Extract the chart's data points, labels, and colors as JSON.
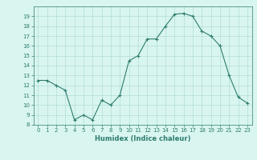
{
  "x": [
    0,
    1,
    2,
    3,
    4,
    5,
    6,
    7,
    8,
    9,
    10,
    11,
    12,
    13,
    14,
    15,
    16,
    17,
    18,
    19,
    20,
    21,
    22,
    23
  ],
  "y": [
    12.5,
    12.5,
    12.0,
    11.5,
    8.5,
    9.0,
    8.5,
    10.5,
    10.0,
    11.0,
    14.5,
    15.0,
    16.7,
    16.7,
    18.0,
    19.2,
    19.3,
    19.0,
    17.5,
    17.0,
    16.0,
    13.0,
    10.8,
    10.2
  ],
  "line_color": "#2e7d6e",
  "marker": "+",
  "bg_color": "#d9f5f0",
  "grid_color": "#b0ddd5",
  "tick_color": "#2e7d6e",
  "xlabel": "Humidex (Indice chaleur)",
  "xlim": [
    -0.5,
    23.5
  ],
  "ylim": [
    8,
    20
  ],
  "yticks": [
    8,
    9,
    10,
    11,
    12,
    13,
    14,
    15,
    16,
    17,
    18,
    19
  ],
  "xticks": [
    0,
    1,
    2,
    3,
    4,
    5,
    6,
    7,
    8,
    9,
    10,
    11,
    12,
    13,
    14,
    15,
    16,
    17,
    18,
    19,
    20,
    21,
    22,
    23
  ],
  "xtick_labels": [
    "0",
    "1",
    "2",
    "3",
    "4",
    "5",
    "6",
    "7",
    "8",
    "9",
    "10",
    "11",
    "12",
    "13",
    "14",
    "15",
    "16",
    "17",
    "18",
    "19",
    "20",
    "21",
    "22",
    "23"
  ]
}
